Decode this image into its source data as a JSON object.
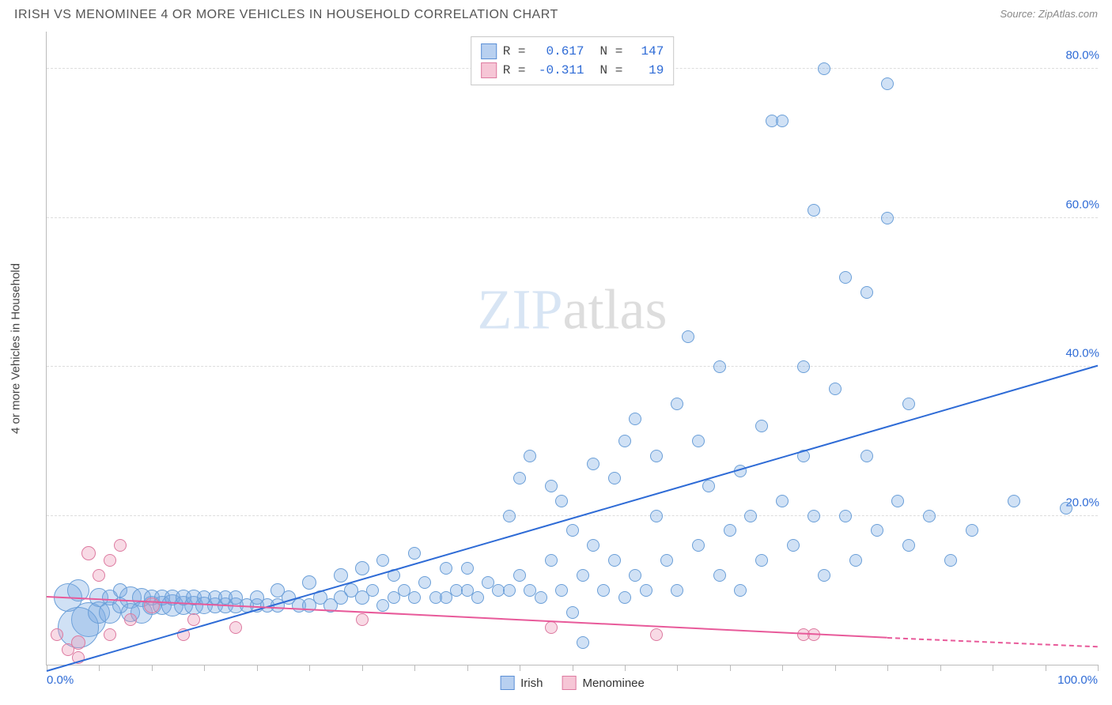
{
  "title": "IRISH VS MENOMINEE 4 OR MORE VEHICLES IN HOUSEHOLD CORRELATION CHART",
  "source_label": "Source: ",
  "source_name": "ZipAtlas.com",
  "ylabel": "4 or more Vehicles in Household",
  "watermark_a": "ZIP",
  "watermark_b": "atlas",
  "chart": {
    "type": "scatter-correlation",
    "xlim": [
      0,
      100
    ],
    "ylim": [
      0,
      85
    ],
    "x_ticks_minor_step": 5,
    "y_gridlines": [
      20,
      40,
      60,
      80
    ],
    "x_axis_labels": [
      {
        "pos": 0,
        "text": "0.0%",
        "color": "#2e6bd6"
      },
      {
        "pos": 100,
        "text": "100.0%",
        "color": "#2e6bd6"
      }
    ],
    "y_axis_labels": [
      {
        "pos": 20,
        "text": "20.0%",
        "color": "#2e6bd6"
      },
      {
        "pos": 40,
        "text": "40.0%",
        "color": "#2e6bd6"
      },
      {
        "pos": 60,
        "text": "60.0%",
        "color": "#2e6bd6"
      },
      {
        "pos": 80,
        "text": "80.0%",
        "color": "#2e6bd6"
      }
    ],
    "background_color": "#ffffff",
    "grid_color": "#dddddd",
    "axis_color": "#bbbbbb"
  },
  "stats_legend": [
    {
      "swatch_fill": "#b8d0f0",
      "swatch_border": "#5b8fd6",
      "r_label": "R =",
      "r": "0.617",
      "n_label": "N =",
      "n": "147",
      "value_color": "#2e6bd6"
    },
    {
      "swatch_fill": "#f6c6d6",
      "swatch_border": "#dd7aa0",
      "r_label": "R =",
      "r": "-0.311",
      "n_label": "N =",
      "n": "19",
      "value_color": "#2e6bd6"
    }
  ],
  "bottom_legend": [
    {
      "swatch_fill": "#b8d0f0",
      "swatch_border": "#5b8fd6",
      "label": "Irish"
    },
    {
      "swatch_fill": "#f6c6d6",
      "swatch_border": "#dd7aa0",
      "label": "Menominee"
    }
  ],
  "series": [
    {
      "name": "Irish",
      "fill": "rgba(120,170,225,0.35)",
      "stroke": "#6b9fd8",
      "trend": {
        "x1": 0,
        "y1": -1,
        "x2": 100,
        "y2": 40,
        "color": "#2e6bd6",
        "dash_from_x": null
      },
      "points": [
        {
          "x": 2,
          "y": 9,
          "r": 18
        },
        {
          "x": 3,
          "y": 10,
          "r": 14
        },
        {
          "x": 4,
          "y": 6,
          "r": 22
        },
        {
          "x": 3,
          "y": 5,
          "r": 26
        },
        {
          "x": 5,
          "y": 9,
          "r": 12
        },
        {
          "x": 5,
          "y": 7,
          "r": 14
        },
        {
          "x": 6,
          "y": 9,
          "r": 10
        },
        {
          "x": 6,
          "y": 7,
          "r": 14
        },
        {
          "x": 7,
          "y": 8,
          "r": 10
        },
        {
          "x": 7,
          "y": 10,
          "r": 9
        },
        {
          "x": 8,
          "y": 9,
          "r": 14
        },
        {
          "x": 8,
          "y": 7,
          "r": 12
        },
        {
          "x": 9,
          "y": 9,
          "r": 12
        },
        {
          "x": 9,
          "y": 7,
          "r": 14
        },
        {
          "x": 10,
          "y": 8,
          "r": 12
        },
        {
          "x": 10,
          "y": 9,
          "r": 10
        },
        {
          "x": 11,
          "y": 8,
          "r": 12
        },
        {
          "x": 11,
          "y": 9,
          "r": 10
        },
        {
          "x": 12,
          "y": 8,
          "r": 14
        },
        {
          "x": 12,
          "y": 9,
          "r": 10
        },
        {
          "x": 13,
          "y": 8,
          "r": 12
        },
        {
          "x": 13,
          "y": 9,
          "r": 10
        },
        {
          "x": 14,
          "y": 8,
          "r": 12
        },
        {
          "x": 14,
          "y": 9,
          "r": 10
        },
        {
          "x": 15,
          "y": 8,
          "r": 11
        },
        {
          "x": 15,
          "y": 9,
          "r": 9
        },
        {
          "x": 16,
          "y": 8,
          "r": 10
        },
        {
          "x": 16,
          "y": 9,
          "r": 9
        },
        {
          "x": 17,
          "y": 8,
          "r": 10
        },
        {
          "x": 17,
          "y": 9,
          "r": 9
        },
        {
          "x": 18,
          "y": 8,
          "r": 10
        },
        {
          "x": 18,
          "y": 9,
          "r": 9
        },
        {
          "x": 19,
          "y": 8,
          "r": 9
        },
        {
          "x": 20,
          "y": 8,
          "r": 9
        },
        {
          "x": 20,
          "y": 9,
          "r": 9
        },
        {
          "x": 21,
          "y": 8,
          "r": 9
        },
        {
          "x": 22,
          "y": 8,
          "r": 9
        },
        {
          "x": 22,
          "y": 10,
          "r": 9
        },
        {
          "x": 23,
          "y": 9,
          "r": 9
        },
        {
          "x": 24,
          "y": 8,
          "r": 9
        },
        {
          "x": 25,
          "y": 8,
          "r": 9
        },
        {
          "x": 25,
          "y": 11,
          "r": 9
        },
        {
          "x": 26,
          "y": 9,
          "r": 9
        },
        {
          "x": 27,
          "y": 8,
          "r": 9
        },
        {
          "x": 28,
          "y": 9,
          "r": 9
        },
        {
          "x": 28,
          "y": 12,
          "r": 9
        },
        {
          "x": 29,
          "y": 10,
          "r": 9
        },
        {
          "x": 30,
          "y": 9,
          "r": 9
        },
        {
          "x": 30,
          "y": 13,
          "r": 9
        },
        {
          "x": 31,
          "y": 10,
          "r": 8
        },
        {
          "x": 32,
          "y": 8,
          "r": 8
        },
        {
          "x": 32,
          "y": 14,
          "r": 8
        },
        {
          "x": 33,
          "y": 9,
          "r": 8
        },
        {
          "x": 33,
          "y": 12,
          "r": 8
        },
        {
          "x": 34,
          "y": 10,
          "r": 8
        },
        {
          "x": 35,
          "y": 9,
          "r": 8
        },
        {
          "x": 35,
          "y": 15,
          "r": 8
        },
        {
          "x": 36,
          "y": 11,
          "r": 8
        },
        {
          "x": 37,
          "y": 9,
          "r": 8
        },
        {
          "x": 38,
          "y": 13,
          "r": 8
        },
        {
          "x": 38,
          "y": 9,
          "r": 8
        },
        {
          "x": 39,
          "y": 10,
          "r": 8
        },
        {
          "x": 40,
          "y": 10,
          "r": 8
        },
        {
          "x": 40,
          "y": 13,
          "r": 8
        },
        {
          "x": 41,
          "y": 9,
          "r": 8
        },
        {
          "x": 42,
          "y": 11,
          "r": 8
        },
        {
          "x": 43,
          "y": 10,
          "r": 8
        },
        {
          "x": 44,
          "y": 10,
          "r": 8
        },
        {
          "x": 44,
          "y": 20,
          "r": 8
        },
        {
          "x": 45,
          "y": 12,
          "r": 8
        },
        {
          "x": 45,
          "y": 25,
          "r": 8
        },
        {
          "x": 46,
          "y": 10,
          "r": 8
        },
        {
          "x": 46,
          "y": 28,
          "r": 8
        },
        {
          "x": 47,
          "y": 9,
          "r": 8
        },
        {
          "x": 48,
          "y": 14,
          "r": 8
        },
        {
          "x": 48,
          "y": 24,
          "r": 8
        },
        {
          "x": 49,
          "y": 10,
          "r": 8
        },
        {
          "x": 49,
          "y": 22,
          "r": 8
        },
        {
          "x": 50,
          "y": 7,
          "r": 8
        },
        {
          "x": 50,
          "y": 18,
          "r": 8
        },
        {
          "x": 51,
          "y": 12,
          "r": 8
        },
        {
          "x": 51,
          "y": 3,
          "r": 8
        },
        {
          "x": 52,
          "y": 16,
          "r": 8
        },
        {
          "x": 52,
          "y": 27,
          "r": 8
        },
        {
          "x": 53,
          "y": 10,
          "r": 8
        },
        {
          "x": 54,
          "y": 14,
          "r": 8
        },
        {
          "x": 54,
          "y": 25,
          "r": 8
        },
        {
          "x": 55,
          "y": 9,
          "r": 8
        },
        {
          "x": 55,
          "y": 30,
          "r": 8
        },
        {
          "x": 56,
          "y": 12,
          "r": 8
        },
        {
          "x": 56,
          "y": 33,
          "r": 8
        },
        {
          "x": 57,
          "y": 10,
          "r": 8
        },
        {
          "x": 58,
          "y": 20,
          "r": 8
        },
        {
          "x": 58,
          "y": 28,
          "r": 8
        },
        {
          "x": 59,
          "y": 14,
          "r": 8
        },
        {
          "x": 60,
          "y": 10,
          "r": 8
        },
        {
          "x": 60,
          "y": 35,
          "r": 8
        },
        {
          "x": 61,
          "y": 44,
          "r": 8
        },
        {
          "x": 62,
          "y": 16,
          "r": 8
        },
        {
          "x": 62,
          "y": 30,
          "r": 8
        },
        {
          "x": 63,
          "y": 24,
          "r": 8
        },
        {
          "x": 64,
          "y": 12,
          "r": 8
        },
        {
          "x": 64,
          "y": 40,
          "r": 8
        },
        {
          "x": 65,
          "y": 18,
          "r": 8
        },
        {
          "x": 66,
          "y": 26,
          "r": 8
        },
        {
          "x": 66,
          "y": 10,
          "r": 8
        },
        {
          "x": 67,
          "y": 20,
          "r": 8
        },
        {
          "x": 68,
          "y": 14,
          "r": 8
        },
        {
          "x": 68,
          "y": 32,
          "r": 8
        },
        {
          "x": 69,
          "y": 73,
          "r": 8
        },
        {
          "x": 70,
          "y": 22,
          "r": 8
        },
        {
          "x": 70,
          "y": 73,
          "r": 8
        },
        {
          "x": 71,
          "y": 16,
          "r": 8
        },
        {
          "x": 72,
          "y": 28,
          "r": 8
        },
        {
          "x": 72,
          "y": 40,
          "r": 8
        },
        {
          "x": 73,
          "y": 20,
          "r": 8
        },
        {
          "x": 73,
          "y": 61,
          "r": 8
        },
        {
          "x": 74,
          "y": 12,
          "r": 8
        },
        {
          "x": 74,
          "y": 80,
          "r": 8
        },
        {
          "x": 75,
          "y": 37,
          "r": 8
        },
        {
          "x": 76,
          "y": 20,
          "r": 8
        },
        {
          "x": 76,
          "y": 52,
          "r": 8
        },
        {
          "x": 77,
          "y": 14,
          "r": 8
        },
        {
          "x": 78,
          "y": 28,
          "r": 8
        },
        {
          "x": 78,
          "y": 50,
          "r": 8
        },
        {
          "x": 79,
          "y": 18,
          "r": 8
        },
        {
          "x": 80,
          "y": 78,
          "r": 8
        },
        {
          "x": 80,
          "y": 60,
          "r": 8
        },
        {
          "x": 81,
          "y": 22,
          "r": 8
        },
        {
          "x": 82,
          "y": 16,
          "r": 8
        },
        {
          "x": 82,
          "y": 35,
          "r": 8
        },
        {
          "x": 84,
          "y": 20,
          "r": 8
        },
        {
          "x": 86,
          "y": 14,
          "r": 8
        },
        {
          "x": 88,
          "y": 18,
          "r": 8
        },
        {
          "x": 92,
          "y": 22,
          "r": 8
        },
        {
          "x": 97,
          "y": 21,
          "r": 8
        }
      ]
    },
    {
      "name": "Menominee",
      "fill": "rgba(235,150,180,0.35)",
      "stroke": "#dd7aa0",
      "trend": {
        "x1": 0,
        "y1": 9,
        "x2": 80,
        "y2": 3.5,
        "color": "#e85a9a",
        "dash_from_x": 80,
        "dash_to_x": 100,
        "dash_y2": 2.3
      },
      "points": [
        {
          "x": 1,
          "y": 4,
          "r": 8
        },
        {
          "x": 2,
          "y": 2,
          "r": 8
        },
        {
          "x": 3,
          "y": 3,
          "r": 9
        },
        {
          "x": 3,
          "y": 1,
          "r": 8
        },
        {
          "x": 4,
          "y": 15,
          "r": 9
        },
        {
          "x": 5,
          "y": 12,
          "r": 8
        },
        {
          "x": 6,
          "y": 14,
          "r": 8
        },
        {
          "x": 6,
          "y": 4,
          "r": 8
        },
        {
          "x": 7,
          "y": 16,
          "r": 8
        },
        {
          "x": 8,
          "y": 6,
          "r": 8
        },
        {
          "x": 10,
          "y": 8,
          "r": 10
        },
        {
          "x": 13,
          "y": 4,
          "r": 8
        },
        {
          "x": 14,
          "y": 6,
          "r": 8
        },
        {
          "x": 18,
          "y": 5,
          "r": 8
        },
        {
          "x": 30,
          "y": 6,
          "r": 8
        },
        {
          "x": 48,
          "y": 5,
          "r": 8
        },
        {
          "x": 58,
          "y": 4,
          "r": 8
        },
        {
          "x": 72,
          "y": 4,
          "r": 8
        },
        {
          "x": 73,
          "y": 4,
          "r": 8
        }
      ]
    }
  ]
}
